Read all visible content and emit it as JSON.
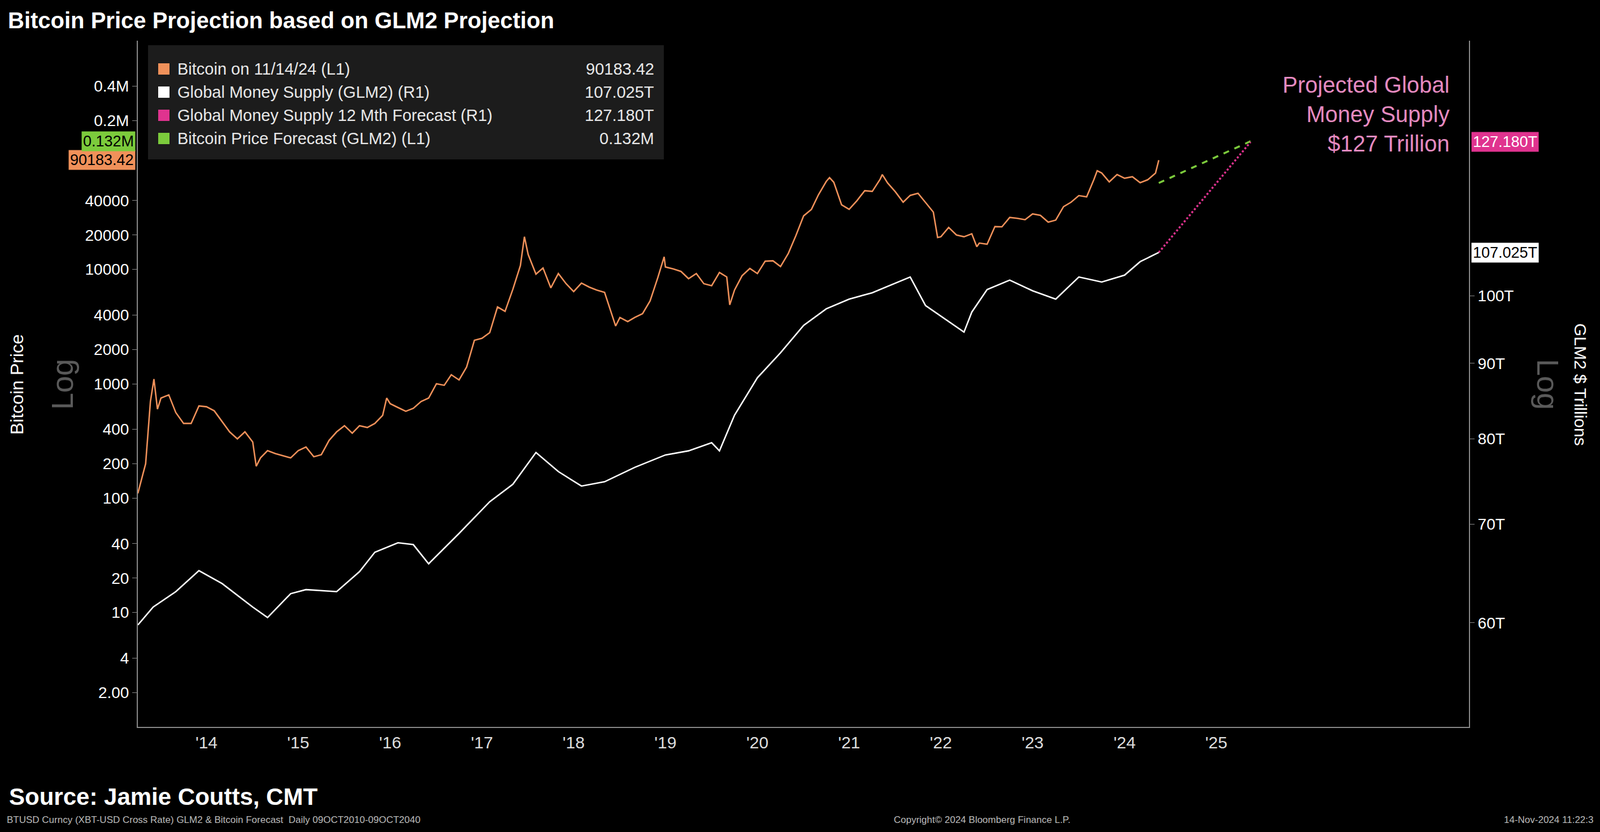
{
  "chart_data": {
    "type": "line",
    "title": "Bitcoin Price Projection based on GLM2 Projection",
    "y_label": "Bitcoin Price",
    "y2_label": "GLM2 $ Trillions",
    "scale_label": "Log",
    "log": "y",
    "grid": false,
    "xlim": [
      "2013-10-01",
      "2028-04-01"
    ],
    "xticks": [
      {
        "value": "2014-07-01",
        "label": "'14"
      },
      {
        "value": "2015-07-01",
        "label": "'15"
      },
      {
        "value": "2016-07-01",
        "label": "'16"
      },
      {
        "value": "2017-07-01",
        "label": "'17"
      },
      {
        "value": "2018-07-01",
        "label": "'18"
      },
      {
        "value": "2019-07-01",
        "label": "'19"
      },
      {
        "value": "2020-07-01",
        "label": "'20"
      },
      {
        "value": "2021-07-01",
        "label": "'21"
      },
      {
        "value": "2022-07-01",
        "label": "'22"
      },
      {
        "value": "2023-07-01",
        "label": "'23"
      },
      {
        "value": "2024-07-01",
        "label": "'24"
      },
      {
        "value": "2025-07-01",
        "label": "'25"
      }
    ],
    "ylim": [
      1,
      1000000
    ],
    "yticks": [
      {
        "value": 2,
        "label": "2.00"
      },
      4,
      10,
      20,
      40,
      100,
      200,
      400,
      1000,
      2000,
      4000,
      10000,
      20000,
      40000,
      {
        "value": 200000,
        "label": "0.2M"
      },
      {
        "value": 400000,
        "label": "0.4M"
      }
    ],
    "y2lim": [
      51,
      149
    ],
    "y2ticks": [
      {
        "value": 60,
        "label": "60T"
      },
      {
        "value": 70,
        "label": "70T"
      },
      {
        "value": 80,
        "label": "80T"
      },
      {
        "value": 90,
        "label": "90T"
      },
      {
        "value": 100,
        "label": "100T"
      }
    ],
    "series": [
      {
        "name": "Bitcoin on 11/14/24 (L1)",
        "color": "#f0915a",
        "axis": "y",
        "line_style": "solid",
        "end_label": "90183.42",
        "x": [
          "2013-10-01",
          "2013-11-01",
          "2013-11-20",
          "2013-12-04",
          "2013-12-18",
          "2014-01-01",
          "2014-02-01",
          "2014-03-01",
          "2014-04-01",
          "2014-05-01",
          "2014-06-01",
          "2014-07-01",
          "2014-08-01",
          "2014-09-01",
          "2014-10-01",
          "2014-11-01",
          "2014-12-01",
          "2015-01-01",
          "2015-01-15",
          "2015-02-01",
          "2015-03-01",
          "2015-04-01",
          "2015-05-01",
          "2015-06-01",
          "2015-07-01",
          "2015-08-01",
          "2015-09-01",
          "2015-10-01",
          "2015-11-01",
          "2015-12-01",
          "2016-01-01",
          "2016-02-01",
          "2016-03-01",
          "2016-04-01",
          "2016-05-01",
          "2016-06-01",
          "2016-06-17",
          "2016-07-01",
          "2016-08-01",
          "2016-09-01",
          "2016-10-01",
          "2016-11-01",
          "2016-12-01",
          "2017-01-01",
          "2017-02-01",
          "2017-03-01",
          "2017-04-01",
          "2017-05-01",
          "2017-06-01",
          "2017-07-01",
          "2017-08-01",
          "2017-09-01",
          "2017-10-01",
          "2017-11-01",
          "2017-12-01",
          "2017-12-17",
          "2018-01-01",
          "2018-02-01",
          "2018-03-01",
          "2018-04-01",
          "2018-05-01",
          "2018-06-01",
          "2018-07-01",
          "2018-08-01",
          "2018-09-01",
          "2018-10-01",
          "2018-11-01",
          "2018-12-01",
          "2018-12-15",
          "2019-01-01",
          "2019-02-01",
          "2019-03-01",
          "2019-04-01",
          "2019-05-01",
          "2019-06-01",
          "2019-06-26",
          "2019-07-01",
          "2019-08-01",
          "2019-09-01",
          "2019-10-01",
          "2019-11-01",
          "2019-12-01",
          "2020-01-01",
          "2020-02-01",
          "2020-03-01",
          "2020-03-13",
          "2020-04-01",
          "2020-05-01",
          "2020-06-01",
          "2020-07-01",
          "2020-08-01",
          "2020-09-01",
          "2020-10-01",
          "2020-11-01",
          "2020-12-01",
          "2021-01-01",
          "2021-02-01",
          "2021-03-01",
          "2021-04-01",
          "2021-04-14",
          "2021-05-01",
          "2021-06-01",
          "2021-07-01",
          "2021-08-01",
          "2021-09-01",
          "2021-10-01",
          "2021-11-01",
          "2021-11-10",
          "2021-12-01",
          "2022-01-01",
          "2022-02-01",
          "2022-03-01",
          "2022-04-01",
          "2022-05-01",
          "2022-06-01",
          "2022-06-18",
          "2022-07-01",
          "2022-08-01",
          "2022-09-01",
          "2022-10-01",
          "2022-11-01",
          "2022-11-21",
          "2022-12-01",
          "2023-01-01",
          "2023-02-01",
          "2023-03-01",
          "2023-04-01",
          "2023-05-01",
          "2023-06-01",
          "2023-07-01",
          "2023-08-01",
          "2023-09-01",
          "2023-10-01",
          "2023-11-01",
          "2023-12-01",
          "2024-01-01",
          "2024-02-01",
          "2024-03-01",
          "2024-03-14",
          "2024-04-01",
          "2024-05-01",
          "2024-06-01",
          "2024-07-01",
          "2024-08-01",
          "2024-09-01",
          "2024-10-01",
          "2024-11-01",
          "2024-11-14"
        ],
        "values": [
          110,
          200,
          700,
          1100,
          600,
          750,
          800,
          560,
          450,
          450,
          640,
          630,
          580,
          470,
          380,
          330,
          380,
          310,
          190,
          225,
          260,
          245,
          235,
          225,
          260,
          280,
          230,
          240,
          320,
          380,
          430,
          370,
          430,
          415,
          450,
          530,
          750,
          670,
          620,
          575,
          610,
          700,
          750,
          1000,
          970,
          1200,
          1080,
          1400,
          2400,
          2500,
          2800,
          4700,
          4300,
          6700,
          10800,
          19300,
          13500,
          9100,
          10300,
          6900,
          9200,
          7500,
          6400,
          7600,
          7000,
          6600,
          6300,
          4000,
          3200,
          3800,
          3500,
          3800,
          4100,
          5300,
          8500,
          12900,
          10500,
          10100,
          9600,
          8300,
          9200,
          7500,
          7200,
          9400,
          8600,
          4900,
          6600,
          8800,
          10200,
          9200,
          11800,
          11900,
          10600,
          13800,
          19700,
          29400,
          33500,
          45000,
          58800,
          63500,
          57800,
          36700,
          33500,
          39900,
          48800,
          48100,
          61300,
          67500,
          57000,
          47700,
          38700,
          44400,
          46300,
          38500,
          31700,
          19000,
          19300,
          23300,
          20000,
          19300,
          20500,
          15800,
          17000,
          16600,
          23700,
          23600,
          28500,
          28000,
          27200,
          30600,
          29700,
          25900,
          27000,
          35400,
          38700,
          44200,
          43100,
          61200,
          73000,
          69700,
          58300,
          67500,
          62700,
          64600,
          57300,
          60800,
          69500,
          90183.42
        ]
      },
      {
        "name": "Global Money Supply (GLM2) (R1)",
        "color": "#ffffff",
        "axis": "y2",
        "line_style": "solid",
        "end_label": "107.025T",
        "x": [
          "2013-10-01",
          "2013-12-01",
          "2014-03-01",
          "2014-06-01",
          "2014-09-01",
          "2015-01-01",
          "2015-03-01",
          "2015-06-01",
          "2015-08-01",
          "2015-12-01",
          "2016-03-01",
          "2016-05-01",
          "2016-08-01",
          "2016-10-01",
          "2016-12-01",
          "2017-04-01",
          "2017-08-01",
          "2017-11-01",
          "2018-02-01",
          "2018-05-01",
          "2018-08-01",
          "2018-11-01",
          "2019-03-01",
          "2019-07-01",
          "2019-10-01",
          "2020-01-01",
          "2020-02-01",
          "2020-04-01",
          "2020-07-01",
          "2020-10-01",
          "2021-01-01",
          "2021-04-01",
          "2021-07-01",
          "2021-10-01",
          "2022-03-01",
          "2022-05-01",
          "2022-10-01",
          "2022-11-01",
          "2023-01-01",
          "2023-04-01",
          "2023-07-01",
          "2023-10-01",
          "2024-01-01",
          "2024-04-01",
          "2024-07-01",
          "2024-09-01",
          "2024-11-14"
        ],
        "values": [
          59.8,
          61.5,
          63.0,
          65.1,
          63.8,
          61.5,
          60.5,
          62.8,
          63.2,
          63.0,
          65.0,
          67.0,
          68.0,
          67.8,
          65.8,
          69.0,
          72.5,
          74.5,
          78.3,
          76.0,
          74.3,
          74.8,
          76.5,
          78.0,
          78.5,
          79.5,
          78.5,
          83.0,
          88.0,
          91.5,
          95.5,
          98.0,
          99.5,
          100.5,
          103.0,
          98.5,
          94.5,
          97.5,
          101.0,
          102.5,
          100.8,
          99.5,
          103.0,
          102.2,
          103.3,
          105.5,
          107.025
        ]
      },
      {
        "name": "Global Money Supply 12 Mth Forecast (R1)",
        "color": "#e0338f",
        "axis": "y2",
        "line_style": "dot",
        "end_label": "127.180T",
        "x": [
          "2024-11-14",
          "2025-11-14"
        ],
        "values": [
          107.025,
          127.18
        ]
      },
      {
        "name": "Bitcoin Price Forecast (GLM2) (L1)",
        "color": "#7ccb3c",
        "axis": "y",
        "line_style": "dash",
        "end_label": "0.132M",
        "x": [
          "2024-11-14",
          "2025-11-14"
        ],
        "values": [
          57000,
          132000
        ]
      }
    ],
    "annotation": {
      "lines": [
        "Projected Global",
        "Money Supply",
        "$127 Trillion"
      ],
      "color": "#e58ac0"
    },
    "source": "Source: Jamie Coutts, CMT",
    "footnotes": [
      "BTUSD Curncy (XBT-USD Cross Rate) GLM2 & Bitcoin Forecast  Daily 09OCT2010-09OCT2040",
      "Copyright© 2024 Bloomberg Finance L.P.",
      "14-Nov-2024 11:22:3"
    ]
  }
}
